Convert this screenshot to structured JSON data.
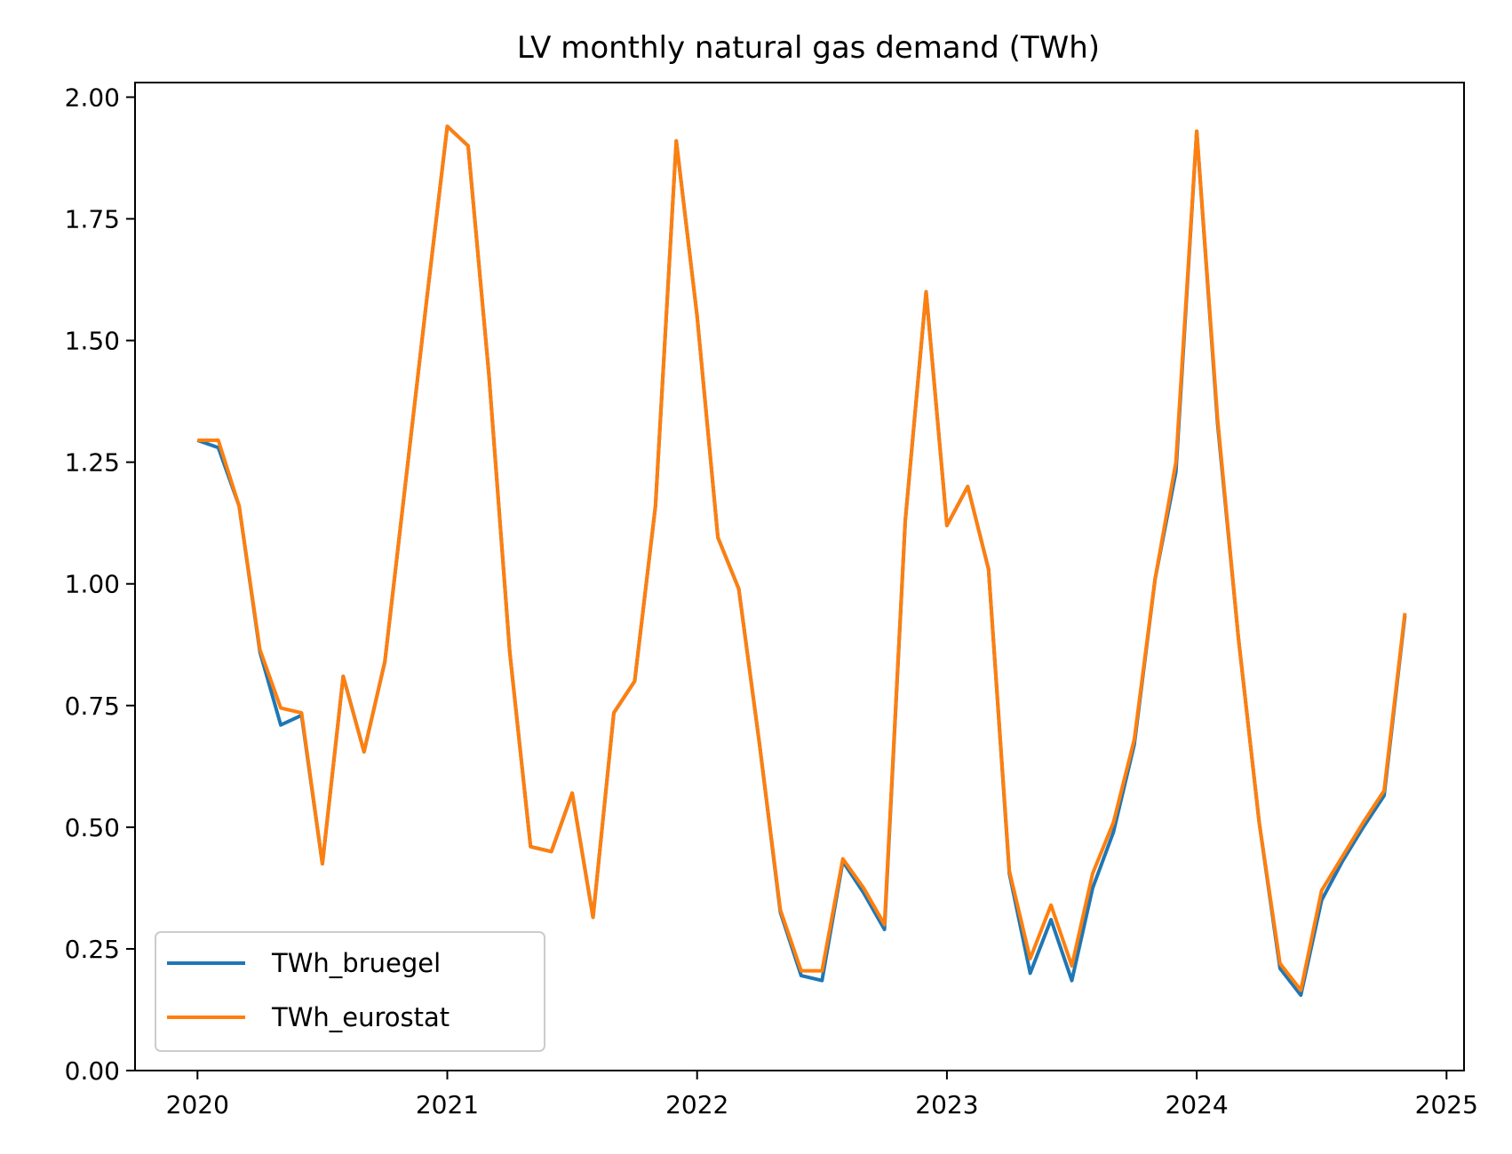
{
  "chart_data": {
    "type": "line",
    "title": "LV monthly natural gas demand (TWh)",
    "xlabel": "",
    "ylabel": "",
    "x_start": "2020-01",
    "xlim": [
      2019.75,
      2025.07
    ],
    "ylim": [
      0,
      2.03
    ],
    "x_ticks": [
      2020,
      2021,
      2022,
      2023,
      2024,
      2025
    ],
    "x_tick_labels": [
      "2020",
      "2021",
      "2022",
      "2023",
      "2024",
      "2025"
    ],
    "y_ticks": [
      0,
      0.25,
      0.5,
      0.75,
      1.0,
      1.25,
      1.5,
      1.75,
      2.0
    ],
    "y_tick_labels": [
      "0.00",
      "0.25",
      "0.50",
      "0.75",
      "1.00",
      "1.25",
      "1.50",
      "1.75",
      "2.00"
    ],
    "grid": false,
    "legend_position": "bottom-left",
    "series": [
      {
        "name": "TWh_bruegel",
        "color": "#1f77b4",
        "values": [
          1.295,
          1.28,
          1.16,
          0.86,
          0.71,
          0.73,
          0.425,
          0.81,
          0.655,
          0.84,
          1.21,
          1.58,
          1.94,
          1.9,
          1.43,
          0.86,
          0.46,
          0.45,
          0.57,
          0.315,
          0.735,
          0.8,
          1.16,
          1.91,
          1.55,
          1.095,
          0.99,
          0.67,
          0.325,
          0.195,
          0.185,
          0.43,
          0.365,
          0.29,
          1.13,
          1.6,
          1.12,
          1.2,
          1.03,
          0.405,
          0.2,
          0.31,
          0.185,
          0.375,
          0.49,
          0.67,
          1.01,
          1.23,
          1.93,
          1.33,
          0.89,
          0.51,
          0.21,
          0.155,
          0.35,
          0.43,
          0.5,
          0.565,
          0.935
        ]
      },
      {
        "name": "TWh_eurostat",
        "color": "#ff7f0e",
        "values": [
          1.295,
          1.295,
          1.16,
          0.865,
          0.745,
          0.735,
          0.425,
          0.81,
          0.655,
          0.84,
          1.21,
          1.58,
          1.94,
          1.9,
          1.43,
          0.86,
          0.46,
          0.45,
          0.57,
          0.315,
          0.735,
          0.8,
          1.16,
          1.91,
          1.55,
          1.095,
          0.99,
          0.67,
          0.33,
          0.205,
          0.205,
          0.435,
          0.375,
          0.3,
          1.13,
          1.6,
          1.12,
          1.2,
          1.03,
          0.41,
          0.23,
          0.34,
          0.215,
          0.405,
          0.51,
          0.68,
          1.01,
          1.25,
          1.93,
          1.34,
          0.89,
          0.51,
          0.22,
          0.165,
          0.37,
          0.44,
          0.51,
          0.575,
          0.94
        ]
      }
    ]
  }
}
